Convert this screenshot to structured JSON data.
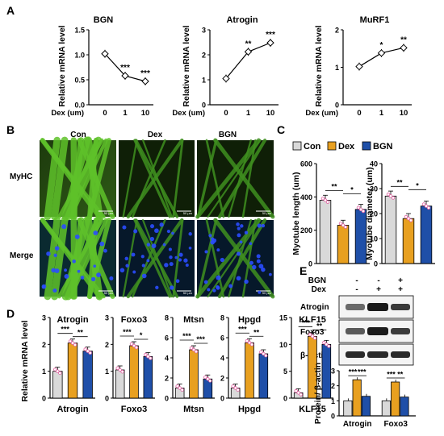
{
  "panel_labels": {
    "A": "A",
    "B": "B",
    "C": "C",
    "D": "D",
    "E": "E"
  },
  "colors": {
    "con": "#d9d9d9",
    "dex": "#e8a020",
    "bgn": "#1f4fa8",
    "dot": "#e060a0",
    "line": "#000000"
  },
  "legend": {
    "items": [
      {
        "label": "Con",
        "color": "#d9d9d9"
      },
      {
        "label": "Dex",
        "color": "#e8a020"
      },
      {
        "label": "BGN",
        "color": "#1f4fa8"
      }
    ]
  },
  "micro": {
    "col_labels": [
      "Con",
      "Dex",
      "BGN"
    ],
    "row_labels": [
      "MyHC",
      "Merge"
    ],
    "scale_label": "50 μm"
  },
  "western": {
    "header_rows": [
      {
        "label": "BGN",
        "signs": [
          "-",
          "-",
          "+"
        ]
      },
      {
        "label": "Dex",
        "signs": [
          "-",
          "+",
          "+"
        ]
      }
    ],
    "blots": [
      "Atrogin",
      "Foxo3",
      "β-Actin"
    ]
  },
  "chart_data": [
    {
      "id": "A1",
      "type": "line",
      "title": "BGN",
      "xlabel": "Dex (um)",
      "ylabel": "Relative mRNA level",
      "categories": [
        "0",
        "1",
        "10"
      ],
      "values": [
        1.02,
        0.58,
        0.47
      ],
      "ylim": [
        0,
        1.5
      ],
      "yticks": [
        "0.0",
        "0.5",
        "1.0",
        "1.5"
      ],
      "sig": [
        "",
        "***",
        "***"
      ]
    },
    {
      "id": "A2",
      "type": "line",
      "title": "Atrogin",
      "xlabel": "Dex (um)",
      "ylabel": "Relative mRNA level",
      "categories": [
        "0",
        "1",
        "10"
      ],
      "values": [
        1.05,
        2.12,
        2.48
      ],
      "ylim": [
        0,
        3
      ],
      "yticks": [
        "0",
        "1",
        "2",
        "3"
      ],
      "sig": [
        "",
        "**",
        "***"
      ]
    },
    {
      "id": "A3",
      "type": "line",
      "title": "MuRF1",
      "xlabel": "Dex (um)",
      "ylabel": "Relative mRNA level",
      "categories": [
        "0",
        "1",
        "10"
      ],
      "values": [
        1.02,
        1.38,
        1.52
      ],
      "ylim": [
        0,
        2
      ],
      "yticks": [
        "0",
        "1",
        "2"
      ],
      "sig": [
        "",
        "*",
        "**"
      ]
    },
    {
      "id": "C1",
      "type": "bar",
      "ylabel": "Myotube length (um)",
      "categories": [
        "Con",
        "Dex",
        "BGN"
      ],
      "values": [
        380,
        230,
        325
      ],
      "ylim": [
        0,
        600
      ],
      "yticks": [
        "0",
        "200",
        "400",
        "600"
      ],
      "sig": [
        "**",
        "*"
      ]
    },
    {
      "id": "C2",
      "type": "bar",
      "ylabel": "Myotube diameter (um)",
      "categories": [
        "Con",
        "Dex",
        "BGN"
      ],
      "values": [
        27,
        18,
        23
      ],
      "ylim": [
        0,
        40
      ],
      "yticks": [
        "0",
        "10",
        "20",
        "30",
        "40"
      ],
      "sig": [
        "**",
        "*"
      ]
    },
    {
      "id": "D1",
      "type": "bar",
      "title": "Atrogin",
      "ylabel": "Relative mRNA level",
      "categories": [
        "Con",
        "Dex",
        "BGN"
      ],
      "values": [
        1.0,
        2.05,
        1.75
      ],
      "ylim": [
        0,
        3
      ],
      "yticks": [
        "0",
        "1",
        "2",
        "3"
      ],
      "sig": [
        "***",
        "**"
      ]
    },
    {
      "id": "D2",
      "type": "bar",
      "title": "Foxo3",
      "categories": [
        "Con",
        "Dex",
        "BGN"
      ],
      "values": [
        1.05,
        1.95,
        1.55
      ],
      "ylim": [
        0,
        3
      ],
      "yticks": [
        "0",
        "1",
        "2",
        "3"
      ],
      "sig": [
        "***",
        "*"
      ]
    },
    {
      "id": "D3",
      "type": "bar",
      "title": "Mtsn",
      "categories": [
        "Con",
        "Dex",
        "BGN"
      ],
      "values": [
        1.0,
        4.8,
        1.9
      ],
      "ylim": [
        0,
        8
      ],
      "yticks": [
        "0",
        "2",
        "4",
        "6",
        "8"
      ],
      "sig": [
        "***",
        "***"
      ]
    },
    {
      "id": "D4",
      "type": "bar",
      "title": "Hpgd",
      "categories": [
        "Con",
        "Dex",
        "BGN"
      ],
      "values": [
        1.0,
        5.5,
        4.4
      ],
      "ylim": [
        0,
        8
      ],
      "yticks": [
        "0",
        "2",
        "4",
        "6",
        "8"
      ],
      "sig": [
        "***",
        "**"
      ]
    },
    {
      "id": "D5",
      "type": "bar",
      "title": "KLF15",
      "categories": [
        "Con",
        "Dex",
        "BGN"
      ],
      "values": [
        1.0,
        11.5,
        10.0
      ],
      "ylim": [
        0,
        15
      ],
      "yticks": [
        "0",
        "5",
        "10",
        "15"
      ],
      "sig": [
        "***",
        "**"
      ]
    },
    {
      "id": "E1",
      "type": "bar",
      "ylabel": "Protein/ β-actin",
      "groups": [
        "Atrogin",
        "Foxo3"
      ],
      "series": [
        {
          "name": "Con",
          "values": [
            1.0,
            1.0
          ]
        },
        {
          "name": "Dex",
          "values": [
            2.4,
            2.25
          ]
        },
        {
          "name": "BGN",
          "values": [
            1.3,
            1.25
          ]
        }
      ],
      "ylim": [
        0,
        3
      ],
      "yticks": [
        "0",
        "1",
        "2",
        "3"
      ],
      "sig": [
        [
          "***",
          "***"
        ],
        [
          "***",
          "**"
        ]
      ]
    }
  ]
}
